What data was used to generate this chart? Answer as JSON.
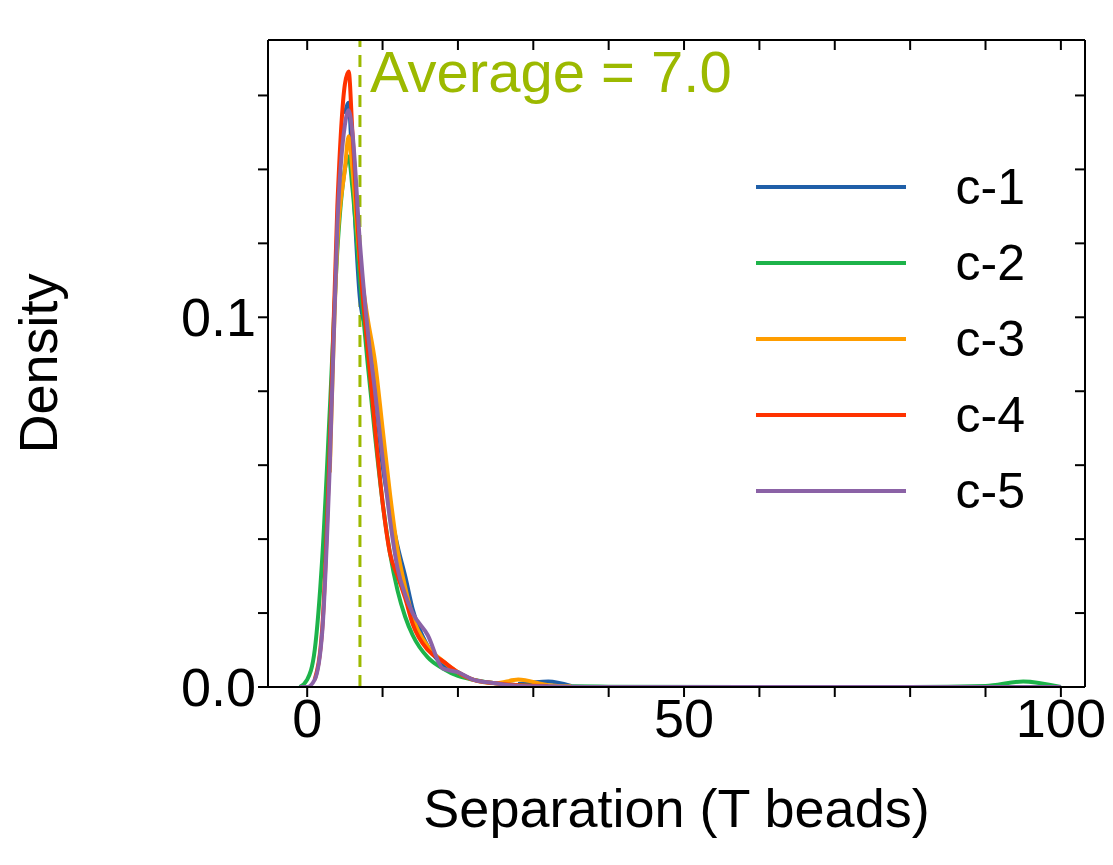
{
  "chart_data": {
    "type": "line",
    "xlabel": "Separation (T beads)",
    "ylabel": "Density",
    "x": [
      -1,
      0,
      1,
      2,
      3,
      4,
      5,
      5.5,
      6,
      7,
      8,
      9,
      10,
      11,
      12,
      13,
      14,
      16,
      18,
      20,
      22,
      25,
      28,
      32,
      35,
      40,
      60,
      80,
      90,
      95,
      100
    ],
    "series": [
      {
        "name": "c-1",
        "color": "#1f5fa8",
        "values": [
          null,
          null,
          null,
          null,
          null,
          null,
          0.155,
          0.158,
          0.14,
          0.105,
          0.095,
          0.08,
          0.06,
          0.048,
          0.038,
          0.03,
          0.021,
          0.011,
          0.006,
          0.004,
          null,
          null,
          0.0008,
          0.0015,
          0.0003,
          null,
          null,
          null,
          null,
          null,
          null
        ]
      },
      {
        "name": "c-2",
        "color": "#1db34a",
        "values": [
          0,
          0.002,
          0.01,
          0.035,
          0.075,
          0.118,
          0.14,
          0.1435,
          0.135,
          0.11,
          0.088,
          0.068,
          0.05,
          0.036,
          0.026,
          0.019,
          0.014,
          0.008,
          0.005,
          0.003,
          0.002,
          0.001,
          0.0005,
          0.0003,
          0.0002,
          0.0001,
          0,
          0,
          0.0003,
          0.0015,
          0
        ]
      },
      {
        "name": "c-3",
        "color": "#ff9d00",
        "values": [
          null,
          null,
          null,
          null,
          0.058,
          0.12,
          0.14,
          0.149,
          0.14,
          0.115,
          0.1,
          0.088,
          0.07,
          0.052,
          0.037,
          0.027,
          0.019,
          0.011,
          0.007,
          0.004,
          0.002,
          0.001,
          0.002,
          0.0005,
          0.0002,
          null,
          null,
          null,
          null,
          null,
          null
        ]
      },
      {
        "name": "c-4",
        "color": "#ff3200",
        "values": [
          null,
          null,
          0.002,
          0.016,
          0.065,
          0.13,
          0.163,
          0.1665,
          0.15,
          0.115,
          0.092,
          0.07,
          0.05,
          0.036,
          0.03,
          0.024,
          0.017,
          0.01,
          0.007,
          0.004,
          0.002,
          0.001,
          0.0005,
          0.0003,
          null,
          null,
          null,
          null,
          null,
          null,
          null
        ]
      },
      {
        "name": "c-5",
        "color": "#8b62a6",
        "values": [
          0,
          0,
          0.002,
          0.015,
          0.06,
          0.125,
          0.152,
          0.156,
          0.15,
          0.12,
          0.097,
          0.08,
          0.062,
          0.045,
          0.032,
          0.025,
          0.02,
          0.014,
          0.005,
          0.004,
          0.002,
          0.001,
          0.0003,
          0.0002,
          0.0001,
          0,
          0,
          0,
          0,
          0,
          0
        ]
      }
    ],
    "xlim": [
      -5.2,
      103.2
    ],
    "ylim": [
      0,
      0.175
    ],
    "xticks": [
      0,
      {
        "value": 10,
        "label": null
      },
      {
        "value": 20,
        "label": null
      },
      {
        "value": 30,
        "label": null
      },
      {
        "value": 40,
        "label": null
      },
      50,
      {
        "value": 60,
        "label": null
      },
      {
        "value": 70,
        "label": null
      },
      {
        "value": 80,
        "label": null
      },
      {
        "value": 90,
        "label": null
      },
      100
    ],
    "yticks": [
      {
        "value": 0,
        "label": "0.0"
      },
      {
        "value": 0.02,
        "label": null
      },
      {
        "value": 0.04,
        "label": null
      },
      {
        "value": 0.06,
        "label": null
      },
      {
        "value": 0.08,
        "label": null
      },
      0.1,
      {
        "value": 0.12,
        "label": null
      },
      {
        "value": 0.14,
        "label": null
      },
      {
        "value": 0.16,
        "label": null
      }
    ],
    "ref_lines": [
      {
        "axis": "x",
        "value": 7,
        "label": "Average = 7.0",
        "color": "#9cb900",
        "line_style": "dashed"
      }
    ],
    "legend": "top right",
    "grid": false,
    "marker": "none",
    "line_style": "solid"
  }
}
